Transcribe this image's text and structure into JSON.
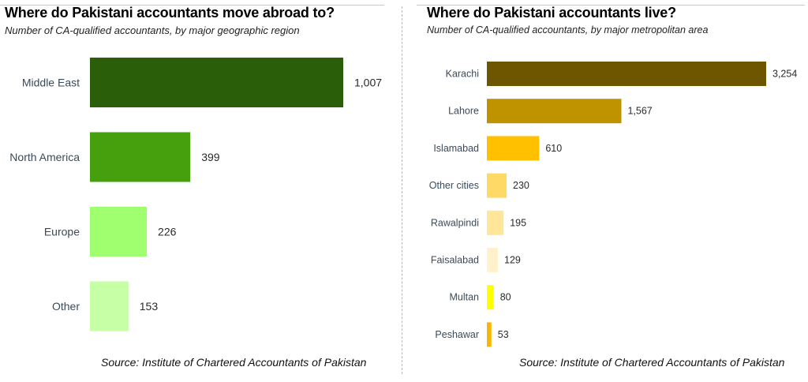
{
  "chart_data": [
    {
      "type": "bar",
      "orientation": "horizontal",
      "title": "Where do Pakistani accountants move abroad to?",
      "subtitle": "Number of CA-qualified accountants, by major geographic region",
      "source": "Source: Institute of Chartered Accountants of Pakistan",
      "categories": [
        "Middle East",
        "North America",
        "Europe",
        "Other"
      ],
      "values": [
        1007,
        399,
        226,
        153
      ],
      "value_labels": [
        "1,007",
        "399",
        "226",
        "153"
      ],
      "colors": [
        "#2a5e08",
        "#46a00e",
        "#a0ff6e",
        "#c6ffa6"
      ],
      "xlim": [
        0,
        1007
      ],
      "grid": false,
      "legend": "none"
    },
    {
      "type": "bar",
      "orientation": "horizontal",
      "title": "Where do Pakistani accountants live?",
      "subtitle": "Number of CA-qualified accountants, by major metropolitan area",
      "source": "Source: Institute of Chartered Accountants of Pakistan",
      "categories": [
        "Karachi",
        "Lahore",
        "Islamabad",
        "Other cities",
        "Rawalpindi",
        "Faisalabad",
        "Multan",
        "Peshawar"
      ],
      "values": [
        3254,
        1567,
        610,
        230,
        195,
        129,
        80,
        53
      ],
      "value_labels": [
        "3,254",
        "1,567",
        "610",
        "230",
        "195",
        "129",
        "80",
        "53"
      ],
      "colors": [
        "#6e5600",
        "#bf9200",
        "#ffc000",
        "#ffd966",
        "#ffe699",
        "#fff2cc",
        "#ffff00",
        "#f5b800"
      ],
      "xlim": [
        0,
        3254
      ],
      "grid": false,
      "legend": "none"
    }
  ]
}
